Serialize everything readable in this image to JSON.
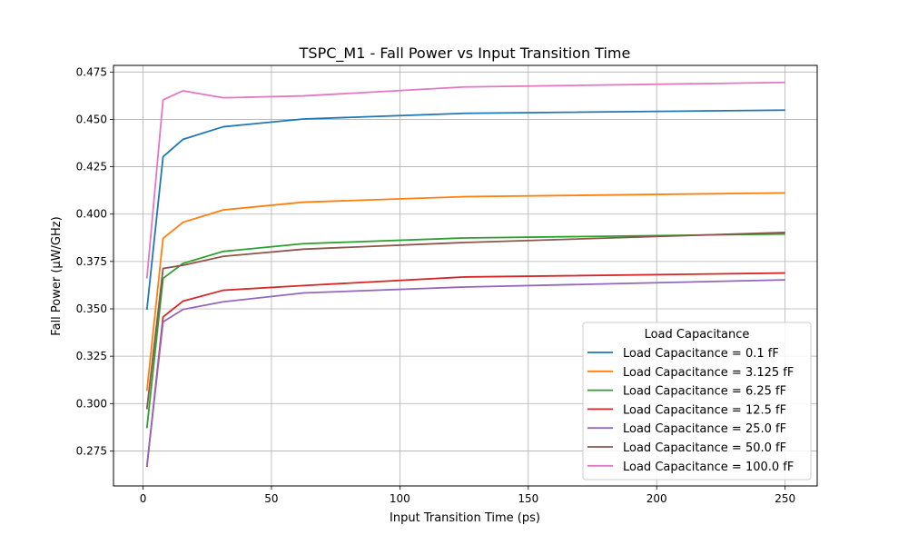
{
  "chart_data": {
    "type": "line",
    "title": "TSPC_M1 - Fall Power vs Input Transition Time",
    "xlabel": "Input Transition Time (ps)",
    "ylabel": "Fall Power (µW/GHz)",
    "xlim": [
      -11.5,
      262.5
    ],
    "ylim": [
      0.2565,
      0.4785
    ],
    "xticks": [
      0,
      50,
      100,
      150,
      200,
      250
    ],
    "yticks": [
      0.275,
      0.3,
      0.325,
      0.35,
      0.375,
      0.4,
      0.425,
      0.45,
      0.475
    ],
    "xtick_labels": [
      "0",
      "50",
      "100",
      "150",
      "200",
      "250"
    ],
    "ytick_labels": [
      "0.275",
      "0.300",
      "0.325",
      "0.350",
      "0.375",
      "0.400",
      "0.425",
      "0.450",
      "0.475"
    ],
    "grid": true,
    "legend": {
      "title": "Load Capacitance",
      "placement": "lower-right"
    },
    "x": [
      1.5,
      7.8,
      15.6,
      31.2,
      62.5,
      125,
      250
    ],
    "series": [
      {
        "name": "Load Capacitance = 0.1 fF",
        "color": "#1f77b4",
        "values": [
          0.3495,
          0.4303,
          0.4395,
          0.4461,
          0.4502,
          0.4532,
          0.4549
        ]
      },
      {
        "name": "Load Capacitance = 3.125 fF",
        "color": "#ff7f0e",
        "values": [
          0.3067,
          0.3872,
          0.3957,
          0.4022,
          0.4063,
          0.4092,
          0.4112
        ]
      },
      {
        "name": "Load Capacitance = 6.25 fF",
        "color": "#2ca02c",
        "values": [
          0.287,
          0.3661,
          0.374,
          0.3803,
          0.3844,
          0.3874,
          0.3895
        ]
      },
      {
        "name": "Load Capacitance = 12.5 fF",
        "color": "#d62728",
        "values": [
          0.2665,
          0.3457,
          0.3541,
          0.3598,
          0.3623,
          0.3668,
          0.3689
        ]
      },
      {
        "name": "Load Capacitance = 25.0 fF",
        "color": "#9467bd",
        "values": [
          0.267,
          0.3431,
          0.3497,
          0.3537,
          0.3584,
          0.3615,
          0.3653
        ]
      },
      {
        "name": "Load Capacitance = 50.0 fF",
        "color": "#8c564b",
        "values": [
          0.297,
          0.3713,
          0.373,
          0.3777,
          0.3815,
          0.385,
          0.3903
        ]
      },
      {
        "name": "Load Capacitance = 100.0 fF",
        "color": "#e377c2",
        "values": [
          0.366,
          0.4603,
          0.4651,
          0.4614,
          0.4624,
          0.4671,
          0.4695
        ]
      }
    ]
  }
}
